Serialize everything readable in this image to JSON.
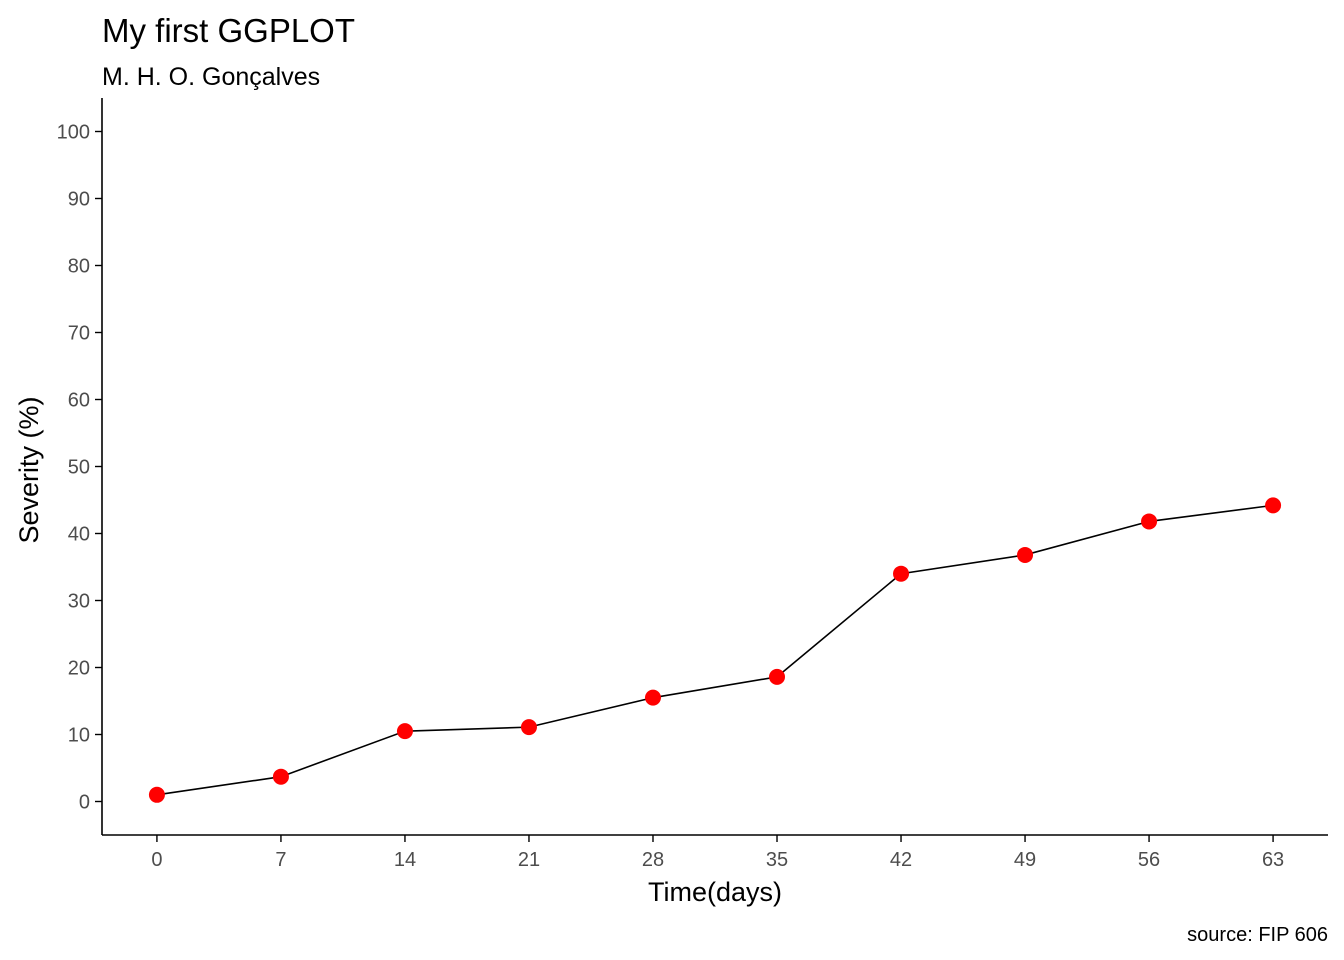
{
  "chart_data": {
    "type": "line",
    "title": "My first GGPLOT",
    "subtitle": "M. H. O. Gonçalves",
    "caption": "source: FIP 606",
    "xlabel": "Time(days)",
    "ylabel": "Severity (%)",
    "x": [
      0,
      7,
      14,
      21,
      28,
      35,
      42,
      49,
      56,
      63
    ],
    "series": [
      {
        "values": [
          1.0,
          3.7,
          10.5,
          11.1,
          15.5,
          18.6,
          34.0,
          36.8,
          41.8,
          44.2
        ]
      }
    ],
    "x_ticks": [
      0,
      7,
      14,
      21,
      28,
      35,
      42,
      49,
      56,
      63
    ],
    "y_ticks": [
      0,
      10,
      20,
      30,
      40,
      50,
      60,
      70,
      80,
      90,
      100
    ],
    "xlim": [
      -3.1,
      66.1
    ],
    "ylim": [
      -5,
      105
    ],
    "grid": false,
    "legend": "none",
    "colors": {
      "point": "#ff0000",
      "line": "#000000",
      "axis": "#000000",
      "tick_text": "#4d4d4d"
    },
    "marker": "filled-circle"
  }
}
